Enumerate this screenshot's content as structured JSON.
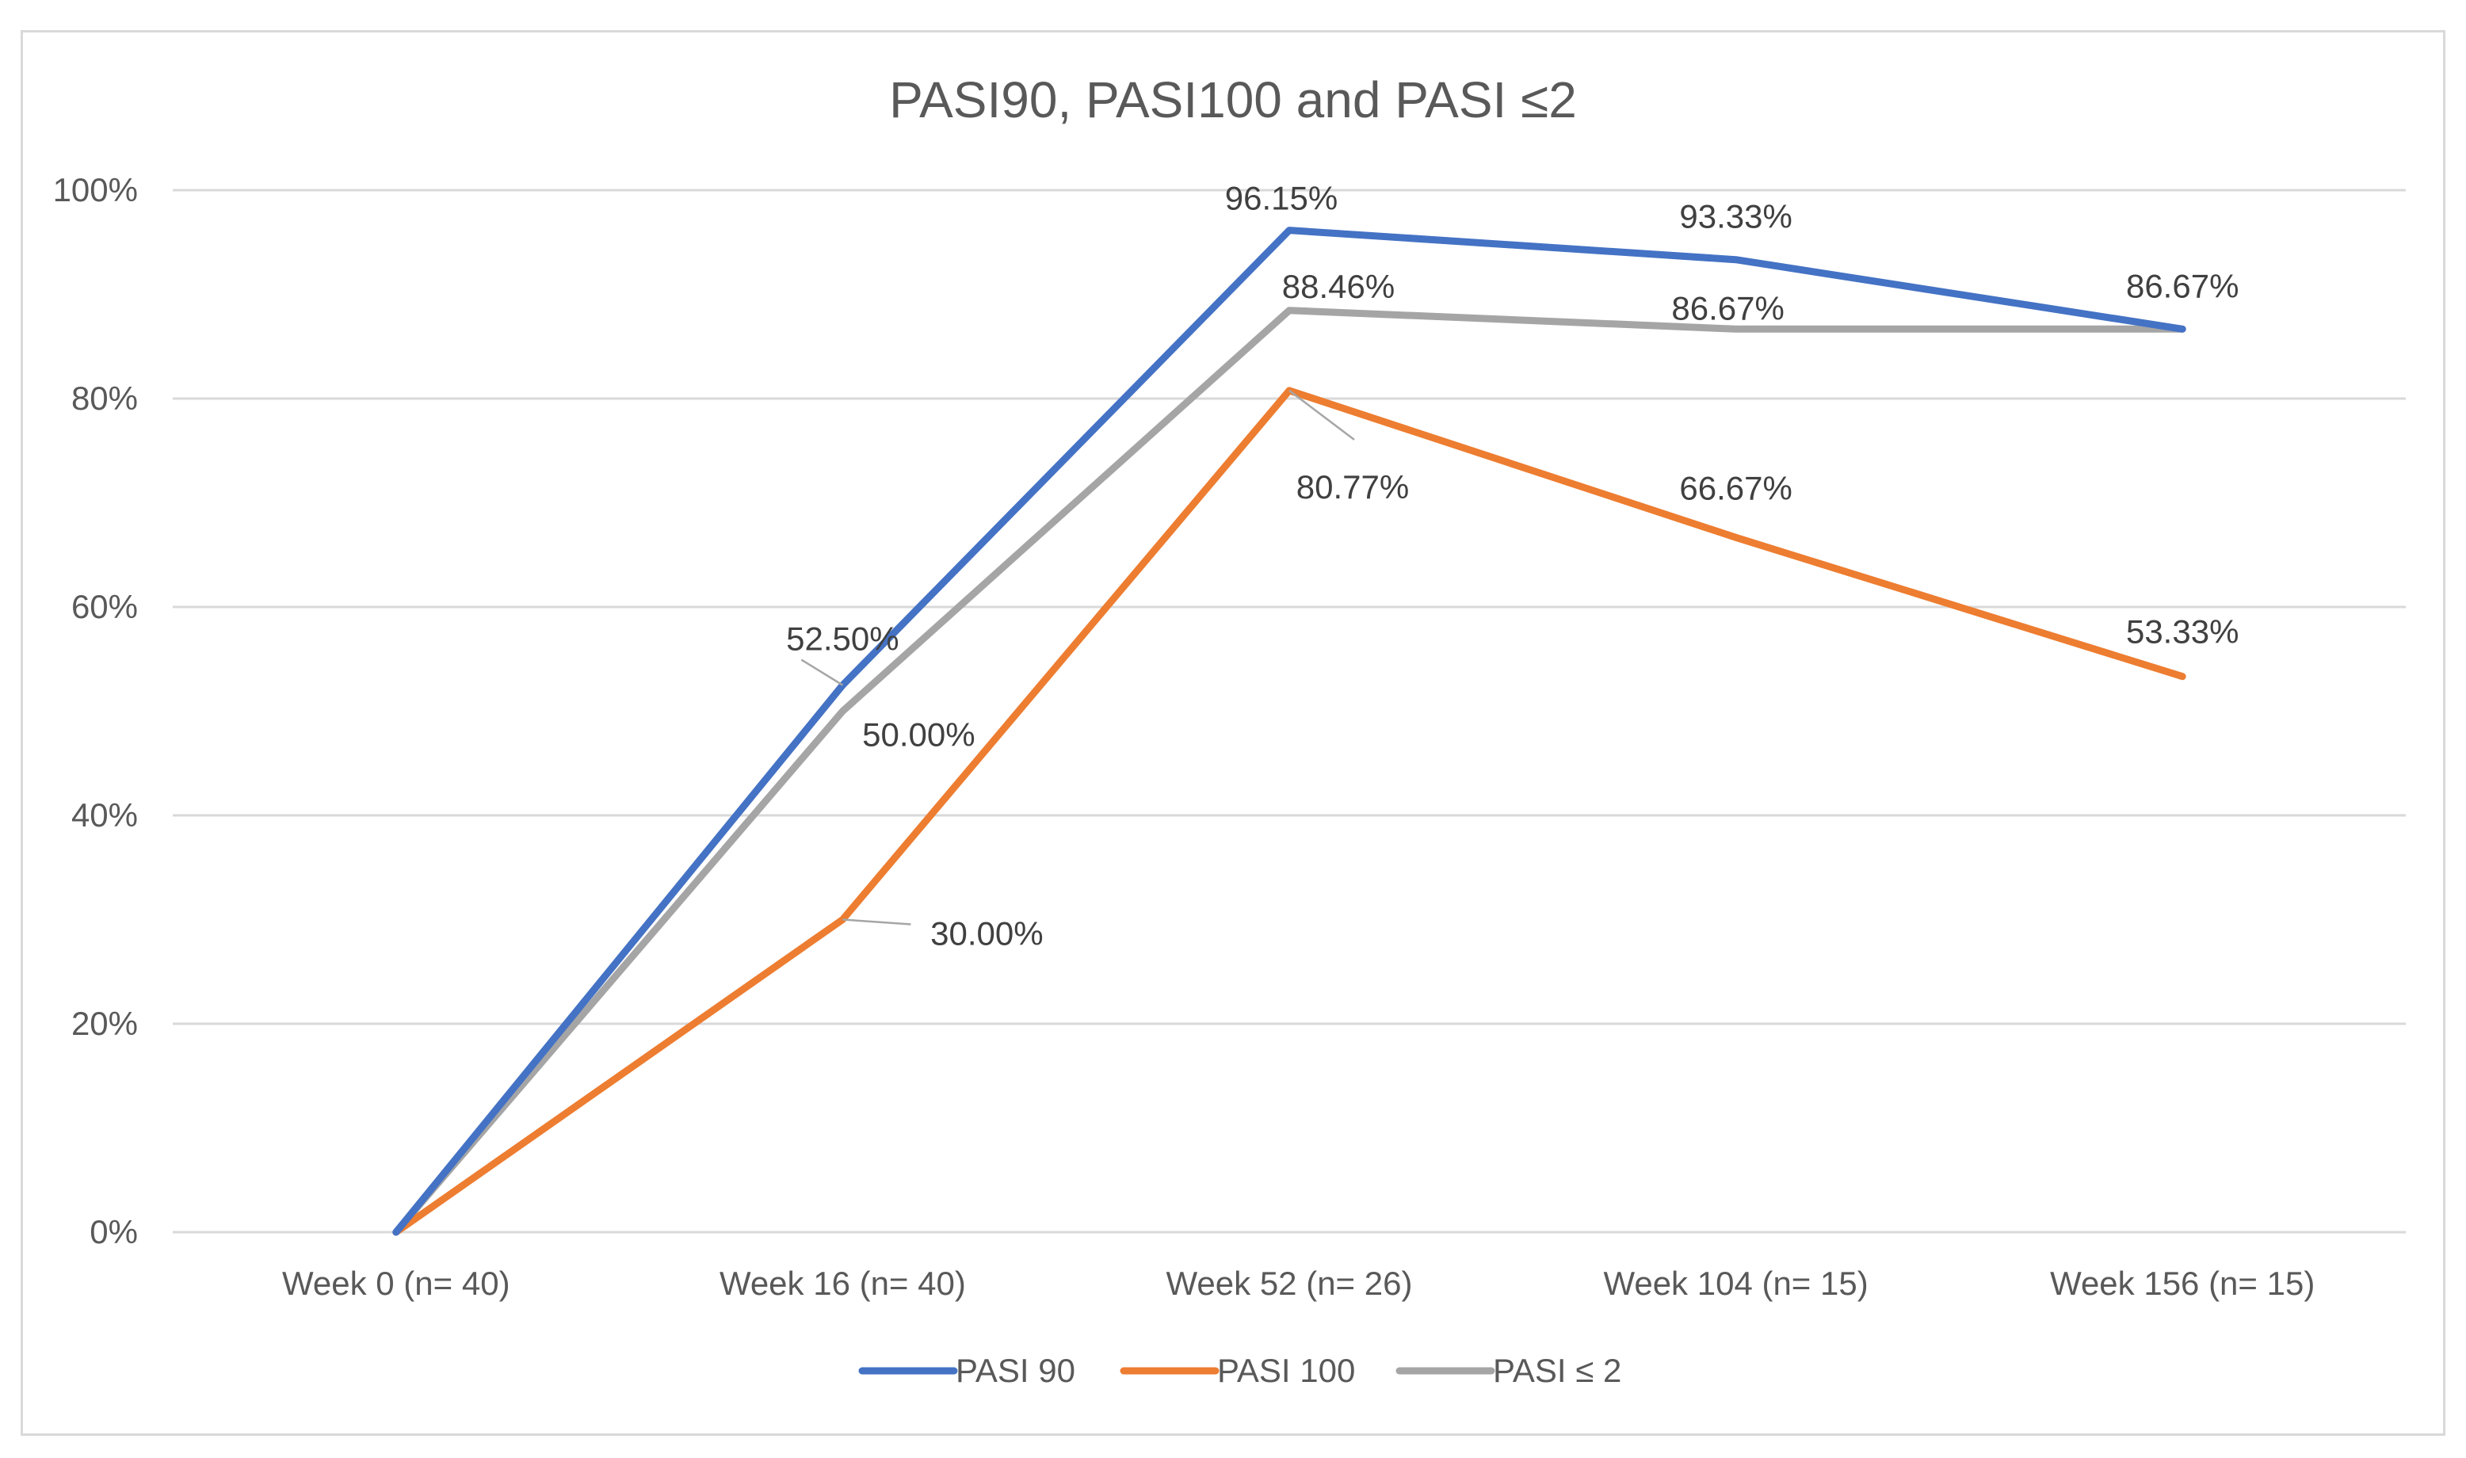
{
  "chart_data": {
    "type": "line",
    "title": "PASI90, PASI100 and PASI ≤2",
    "xlabel": "",
    "ylabel": "",
    "categories": [
      "Week 0 (n= 40)",
      "Week 16 (n= 40)",
      "Week 52 (n= 26)",
      "Week 104 (n= 15)",
      "Week 156 (n= 15)"
    ],
    "ylim": [
      0,
      100
    ],
    "yticks": [
      0,
      20,
      40,
      60,
      80,
      100
    ],
    "ytick_labels": [
      "0%",
      "20%",
      "40%",
      "60%",
      "80%",
      "100%"
    ],
    "grid": true,
    "legend_position": "bottom",
    "series": [
      {
        "name": "PASI 90",
        "color": "#4472c4",
        "values": [
          0,
          52.5,
          96.15,
          93.33,
          86.67
        ],
        "labels": [
          null,
          "52.50%",
          "96.15%",
          "93.33%",
          "86.67%"
        ]
      },
      {
        "name": "PASI 100",
        "color": "#ed7d31",
        "values": [
          0,
          30.0,
          80.77,
          66.67,
          53.33
        ],
        "labels": [
          null,
          "30.00%",
          "80.77%",
          "66.67%",
          "53.33%"
        ]
      },
      {
        "name": "PASI ≤ 2",
        "color": "#a5a5a5",
        "values": [
          0,
          50.0,
          88.46,
          86.67,
          86.67
        ],
        "labels": [
          null,
          "50.00%",
          "88.46%",
          "86.67%",
          null
        ]
      }
    ]
  }
}
